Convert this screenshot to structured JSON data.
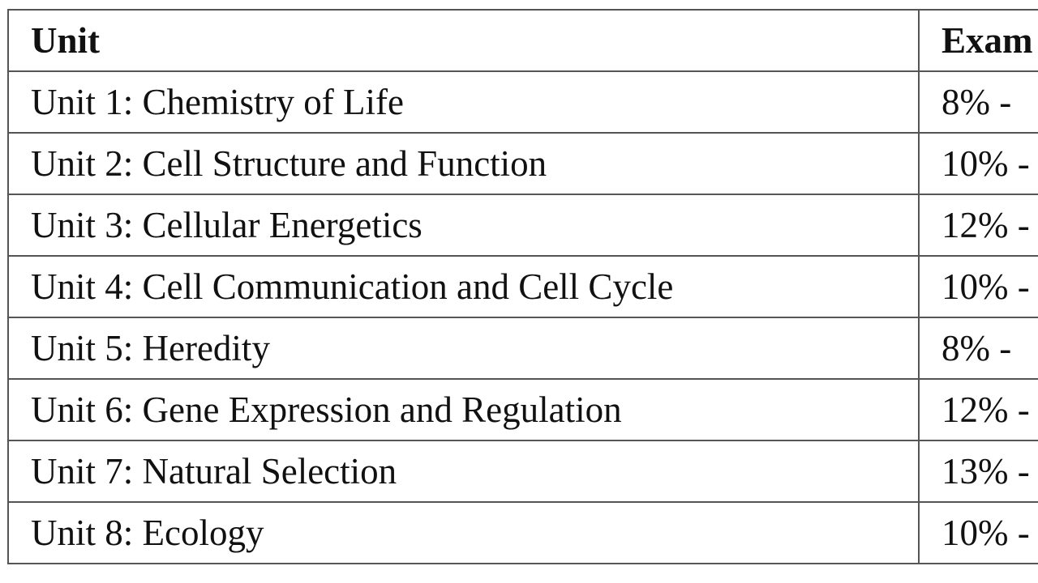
{
  "table": {
    "header": [
      "Unit",
      "Exam"
    ],
    "rows": [
      [
        "Unit 1: Chemistry of Life",
        "8% -"
      ],
      [
        "Unit 2: Cell Structure and Function",
        "10% -"
      ],
      [
        "Unit 3: Cellular Energetics",
        "12% -"
      ],
      [
        "Unit 4: Cell Communication and Cell Cycle",
        "10% -"
      ],
      [
        "Unit 5: Heredity",
        "8% -"
      ],
      [
        "Unit 6: Gene Expression and Regulation",
        "12% -"
      ],
      [
        "Unit 7: Natural Selection",
        "13% -"
      ],
      [
        "Unit 8: Ecology",
        "10% -"
      ]
    ]
  }
}
